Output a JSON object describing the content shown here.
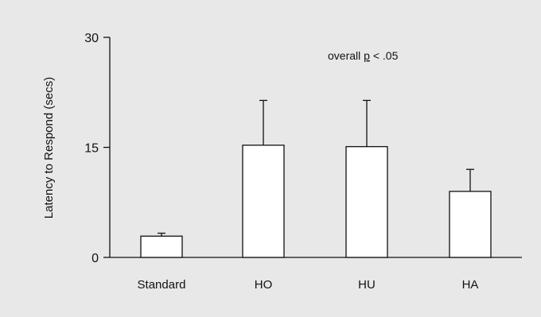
{
  "chart_data": {
    "type": "bar",
    "title": "",
    "xlabel": "",
    "ylabel": "Latency to Respond (secs)",
    "ylim": [
      0,
      30
    ],
    "yticks": [
      "0",
      "15",
      "30"
    ],
    "categories": [
      "Standard",
      "HO",
      "HU",
      "HA"
    ],
    "series": [
      {
        "values": [
          2.9,
          15.3,
          15.1,
          9.0
        ],
        "error_upper": [
          0.4,
          6.1,
          6.3,
          3.0
        ]
      }
    ],
    "annotation": {
      "pre": "overall ",
      "p": "p",
      "post": " < .05"
    },
    "grid": false,
    "colors": {
      "bar_fill": "#ffffff",
      "stroke": "#111111",
      "background": "#e8e8e8"
    }
  }
}
